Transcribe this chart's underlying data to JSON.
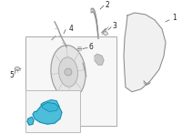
{
  "background_color": "#ffffff",
  "figsize": [
    2.0,
    1.47
  ],
  "dpi": 100,
  "label_fontsize": 5.5,
  "line_color": "#555555",
  "part_color": "#aaaaaa",
  "motor_color": "#3ab8d8",
  "motor_outline": "#1a7a99",
  "glass_color": "#e0e0e0",
  "mechanism_color": "#c0c0c0",
  "box_edge": "#aaaaaa",
  "box_face": "#f7f7f7",
  "inset_edge": "#bbbbbb",
  "inset_face": "#f5f5f5"
}
